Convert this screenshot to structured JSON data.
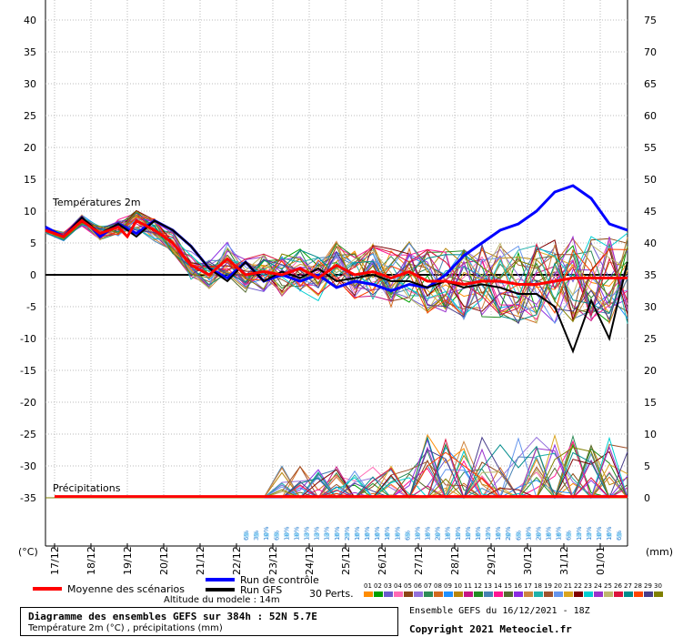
{
  "chart_data": {
    "type": "line",
    "title": "Diagramme des ensembles GEFS sur 384h : 52N 5.7E",
    "subtitle": "Température 2m (°C) , précipitations (mm)",
    "left_axis_unit": "(°C)",
    "right_axis_unit": "(mm)",
    "left_ticks": [
      40,
      35,
      30,
      25,
      20,
      15,
      10,
      5,
      0,
      -5,
      -10,
      -15,
      -20,
      -25,
      -30,
      -35
    ],
    "right_ticks": [
      75,
      70,
      65,
      60,
      55,
      50,
      45,
      40,
      35,
      30,
      25,
      20,
      15,
      10,
      5,
      0
    ],
    "temp_range": [
      -35,
      40
    ],
    "precip_range": [
      0,
      75
    ],
    "x_labels": [
      "17/12",
      "18/12",
      "19/12",
      "20/12",
      "21/12",
      "22/12",
      "23/12",
      "24/12",
      "25/12",
      "26/12",
      "27/12",
      "28/12",
      "29/12",
      "30/12",
      "31/12",
      "01/01"
    ],
    "panel_labels": {
      "temperature": "Températures 2m",
      "precipitation": "Précipitations"
    },
    "precip_percentages": [
      "6%",
      "3%",
      "10%",
      "6%",
      "10%",
      "10%",
      "13%",
      "13%",
      "13%",
      "16%",
      "23%",
      "16%",
      "16%",
      "16%",
      "16%",
      "16%",
      "6%",
      "10%",
      "16%",
      "20%",
      "16%",
      "10%",
      "10%",
      "16%",
      "13%",
      "16%",
      "20%",
      "6%",
      "10%",
      "20%",
      "16%",
      "16%",
      "6%",
      "13%",
      "13%",
      "10%",
      "16%",
      "6%"
    ],
    "series": [
      {
        "name": "Moyenne des scénarios",
        "color": "#ff0000",
        "x": [
          0,
          12,
          24,
          36,
          48,
          54,
          60,
          72,
          84,
          96,
          108,
          120,
          132,
          144,
          156,
          168,
          180,
          192,
          204,
          216,
          228,
          240,
          252,
          264,
          276,
          288,
          300,
          312,
          324,
          336,
          348,
          360,
          372,
          384
        ],
        "y": [
          7,
          6,
          8.5,
          6.5,
          7.5,
          6,
          8.5,
          7,
          5,
          1.5,
          0,
          2.5,
          0,
          0.5,
          0,
          1,
          -0.5,
          1.5,
          0,
          0.5,
          -0.5,
          0.5,
          -1,
          -1,
          -1.5,
          -1,
          -1,
          -1.5,
          -1.5,
          -1,
          -0.5,
          -0.5,
          -0.5,
          -0.5
        ]
      },
      {
        "name": "Run de contrôle",
        "color": "#0000ff",
        "x": [
          0,
          12,
          24,
          36,
          48,
          60,
          72,
          84,
          96,
          108,
          120,
          132,
          144,
          156,
          168,
          180,
          192,
          204,
          216,
          228,
          240,
          252,
          264,
          276,
          288,
          300,
          312,
          324,
          336,
          348,
          360,
          372,
          384
        ],
        "y": [
          7.5,
          6,
          9,
          6,
          8,
          6.5,
          8.5,
          7,
          4.5,
          1,
          -0.5,
          2,
          -1,
          0,
          -1,
          0,
          -2,
          -1,
          -1.5,
          -2.5,
          -1.5,
          -2,
          0,
          3,
          5,
          7,
          8,
          10,
          13,
          14,
          12,
          8,
          7
        ]
      },
      {
        "name": "Run GFS",
        "color": "#000000",
        "x": [
          0,
          12,
          24,
          36,
          48,
          60,
          72,
          84,
          96,
          108,
          120,
          132,
          144,
          156,
          168,
          180,
          192,
          204,
          216,
          228,
          240,
          252,
          264,
          276,
          288,
          300,
          312,
          324,
          336,
          348,
          360,
          372,
          384
        ],
        "y": [
          7,
          6,
          9,
          6.5,
          8,
          6,
          8.5,
          7,
          4.5,
          1,
          -1,
          2,
          -1,
          0.5,
          -0.5,
          1,
          -1,
          -0.5,
          0,
          -1,
          -1,
          -2,
          -1,
          -2,
          -1.5,
          -2,
          -3,
          -3,
          -5,
          -12,
          -4,
          -10,
          2
        ]
      }
    ],
    "legend": [
      "Moyenne des scénarios",
      "Run de contrôle",
      "Run GFS",
      "30 Perts."
    ],
    "pert_numbers": [
      "01",
      "02",
      "03",
      "04",
      "05",
      "06",
      "07",
      "08",
      "09",
      "10",
      "11",
      "12",
      "13",
      "14",
      "15",
      "16",
      "17",
      "18",
      "19",
      "20",
      "21",
      "22",
      "23",
      "24",
      "25",
      "26",
      "27",
      "28",
      "29",
      "30"
    ],
    "pert_colors": [
      "#ff8c00",
      "#00a000",
      "#6a5acd",
      "#ff69b4",
      "#8b4513",
      "#9370db",
      "#2e8b57",
      "#d2691e",
      "#1e90ff",
      "#b8860b",
      "#c71585",
      "#228b22",
      "#4682b4",
      "#ff1493",
      "#556b2f",
      "#8a2be2",
      "#cd853f",
      "#20b2aa",
      "#a0522d",
      "#6495ed",
      "#daa520",
      "#800000",
      "#00ced1",
      "#9932cc",
      "#bdb76b",
      "#dc143c",
      "#008b8b",
      "#ff4500",
      "#483d8b",
      "#808000"
    ]
  },
  "labels": {
    "altitude": "Altitude du modele : 14m",
    "ensemble": "Ensemble GEFS du 16/12/2021 - 18Z",
    "copyright": "Copyright 2021 Meteociel.fr"
  }
}
